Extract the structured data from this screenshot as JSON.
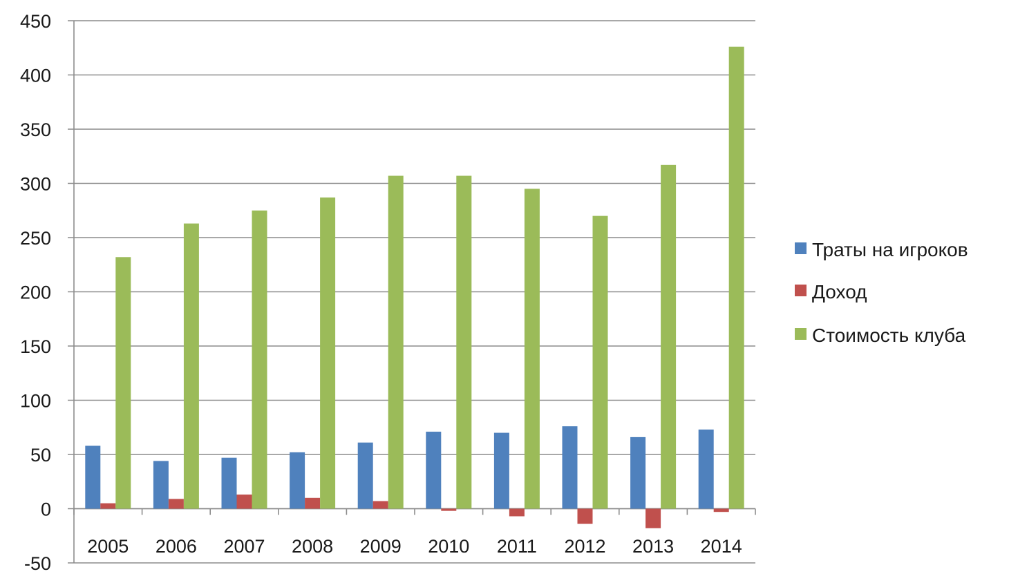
{
  "chart_data": {
    "type": "bar",
    "title": "",
    "xlabel": "",
    "ylabel": "",
    "categories": [
      "2005",
      "2006",
      "2007",
      "2008",
      "2009",
      "2010",
      "2011",
      "2012",
      "2013",
      "2014"
    ],
    "ylim": [
      -50,
      450
    ],
    "yticks": [
      -50,
      0,
      50,
      100,
      150,
      200,
      250,
      300,
      350,
      400,
      450
    ],
    "ytick_labels": [
      "-50",
      "0",
      "50",
      "100",
      "150",
      "200",
      "250",
      "300",
      "350",
      "400",
      "450"
    ],
    "grid": "horizontal",
    "legend_position": "right",
    "series": [
      {
        "name": "Траты на игроков",
        "color": "#4f81bd",
        "values": [
          58,
          44,
          47,
          52,
          61,
          71,
          70,
          76,
          66,
          73
        ]
      },
      {
        "name": "Доход",
        "color": "#c0504d",
        "values": [
          5,
          9,
          13,
          10,
          7,
          -2,
          -7,
          -14,
          -18,
          -3
        ]
      },
      {
        "name": "Стоимость клуба",
        "color": "#9bbb59",
        "values": [
          232,
          263,
          275,
          287,
          307,
          307,
          295,
          270,
          317,
          426
        ]
      }
    ]
  }
}
